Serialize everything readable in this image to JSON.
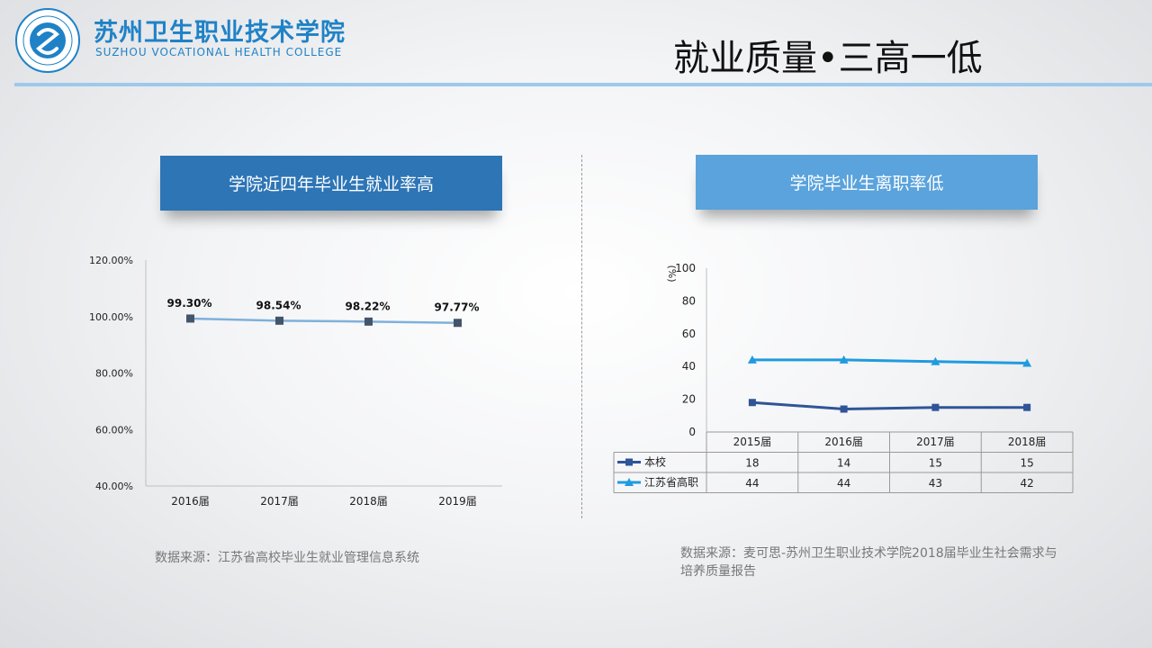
{
  "header": {
    "logo_cn": "苏州卫生职业技术学院",
    "logo_en": "SUZHOU VOCATIONAL HEALTH COLLEGE",
    "slide_title": "就业质量•三高一低"
  },
  "colors": {
    "brand": "#1f82c7",
    "banner_left": "#2e75b6",
    "banner_right": "#5aa3dc",
    "series_school": "#2f5597",
    "series_province": "#1f9be0",
    "employment_line": "#7fb0dc",
    "marker": "#44546a"
  },
  "left": {
    "banner": "学院近四年毕业生就业率高",
    "source": "数据来源：江苏省高校毕业生就业管理信息系统"
  },
  "right": {
    "banner": "学院毕业生离职率低",
    "source": "数据来源：麦可思-苏州卫生职业技术学院2018届毕业生社会需求与培养质量报告"
  },
  "chart_data": [
    {
      "type": "line",
      "categories": [
        "2016届",
        "2017届",
        "2018届",
        "2019届"
      ],
      "series": [
        {
          "values": [
            99.3,
            98.54,
            98.22,
            97.77
          ],
          "labels": [
            "99.30%",
            "98.54%",
            "98.22%",
            "97.77%"
          ]
        }
      ],
      "yticks": [
        "40.00%",
        "60.00%",
        "80.00%",
        "100.00%",
        "120.00%"
      ],
      "ylim": [
        40,
        120
      ],
      "grid": false
    },
    {
      "type": "line",
      "categories": [
        "2015届",
        "2016届",
        "2017届",
        "2018届"
      ],
      "ylabel": "%",
      "ylim": [
        0,
        100
      ],
      "yticks": [
        "0",
        "20",
        "40",
        "60",
        "80",
        "100"
      ],
      "series": [
        {
          "name": "本校",
          "values": [
            18,
            14,
            15,
            15
          ]
        },
        {
          "name": "江苏省高职",
          "values": [
            44,
            44,
            43,
            42
          ]
        }
      ],
      "data_table": true,
      "grid": false
    }
  ]
}
